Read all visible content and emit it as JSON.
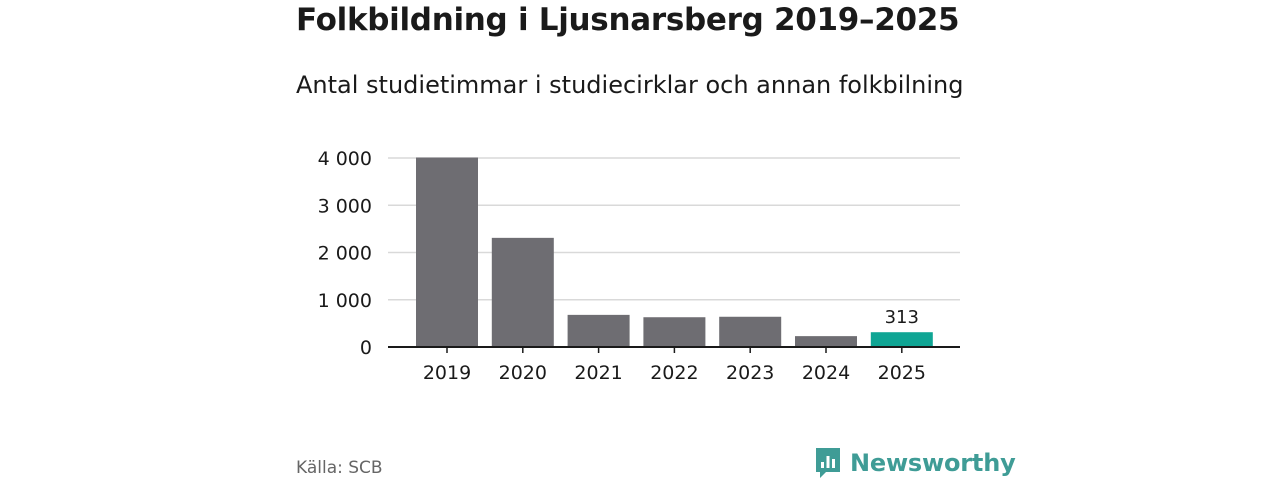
{
  "chart_data": {
    "type": "bar",
    "title": "Folkbildning i Ljusnarsberg 2019–2025",
    "subtitle": "Antal studietimmar i studiecirklar och annan folkbilning",
    "categories": [
      "2019",
      "2020",
      "2021",
      "2022",
      "2023",
      "2024",
      "2025"
    ],
    "values": [
      4010,
      2310,
      680,
      630,
      640,
      230,
      313
    ],
    "ylim": [
      0,
      4000
    ],
    "yticks": [
      0,
      1000,
      2000,
      3000,
      4000
    ],
    "ytick_labels": [
      "0",
      "1 000",
      "2 000",
      "3 000",
      "4 000"
    ],
    "data_labels": [
      {
        "category": "2025",
        "text": "313"
      }
    ],
    "grid": true,
    "bar_color": "#6e6d72",
    "highlight_color": "#0fa594",
    "highlight_category": "2025"
  },
  "footer": {
    "source": "Källa: SCB",
    "brand": "Newsworthy"
  },
  "colors": {
    "brand": "#3f9c96"
  }
}
